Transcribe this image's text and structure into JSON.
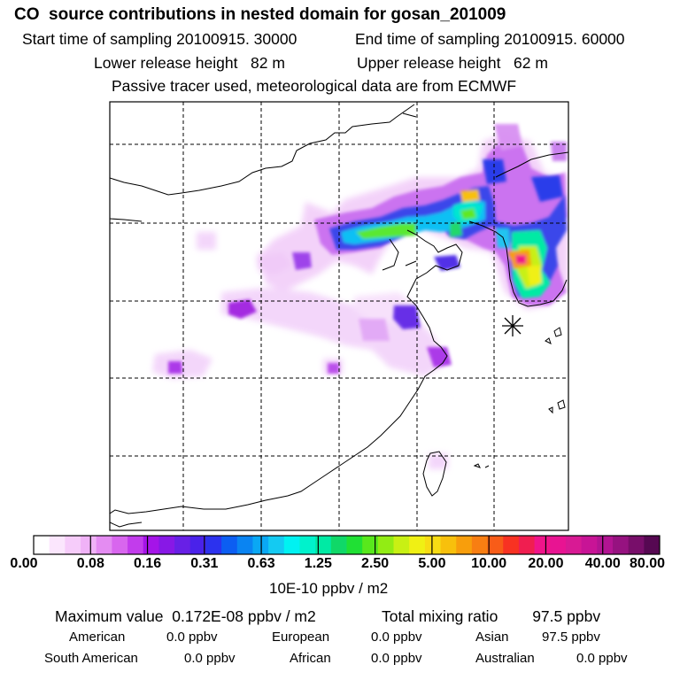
{
  "header": {
    "title": "CO  source contributions in nested domain for gosan_201009",
    "start_time": "Start time of sampling 20100915. 30000",
    "end_time": "End time of sampling 20100915. 60000",
    "lower_height": "Lower release height   82 m",
    "upper_height": "Upper release height   62 m",
    "tracer_note": "Passive tracer used, meteorological data are from ECMWF"
  },
  "colorbar": {
    "ticks": [
      "0.00",
      "0.08",
      "0.16",
      "0.31",
      "0.63",
      "1.25",
      "2.50",
      "5.00",
      "10.00",
      "20.00",
      "40.00",
      "80.00"
    ],
    "unit": "10E-10 ppbv / m2",
    "colors": [
      "#ffffff",
      "#fbe6fd",
      "#f6ccfa",
      "#f0b2f7",
      "#e48cf2",
      "#d866ee",
      "#c23cec",
      "#a514e8",
      "#8818e6",
      "#6820e6",
      "#4a22ea",
      "#2c32ee",
      "#0c5ef2",
      "#0a84f2",
      "#0aa8f4",
      "#14caf2",
      "#00f2f2",
      "#00f2cc",
      "#00eaa4",
      "#10d868",
      "#20e034",
      "#58e81c",
      "#92ec14",
      "#c8f014",
      "#f0f014",
      "#f8dc14",
      "#f8c00c",
      "#f89e0c",
      "#f87e12",
      "#f85c18",
      "#f83222",
      "#f01e50",
      "#f0148a",
      "#e81492",
      "#d81a94",
      "#c81496",
      "#b21492",
      "#961280",
      "#780e6a",
      "#560852"
    ]
  },
  "summary": {
    "max_value": "Maximum value  0.172E-08 ppbv / m2",
    "total": "Total mixing ratio        97.5 ppbv"
  },
  "regions": [
    {
      "name": "American",
      "value": "0.0 ppbv"
    },
    {
      "name": "European",
      "value": "0.0 ppbv"
    },
    {
      "name": "Asian",
      "value": "97.5 ppbv"
    },
    {
      "name": "South American",
      "value": "0.0 ppbv"
    },
    {
      "name": "African",
      "value": "0.0 ppbv"
    },
    {
      "name": "Australian",
      "value": "0.0 ppbv"
    }
  ]
}
